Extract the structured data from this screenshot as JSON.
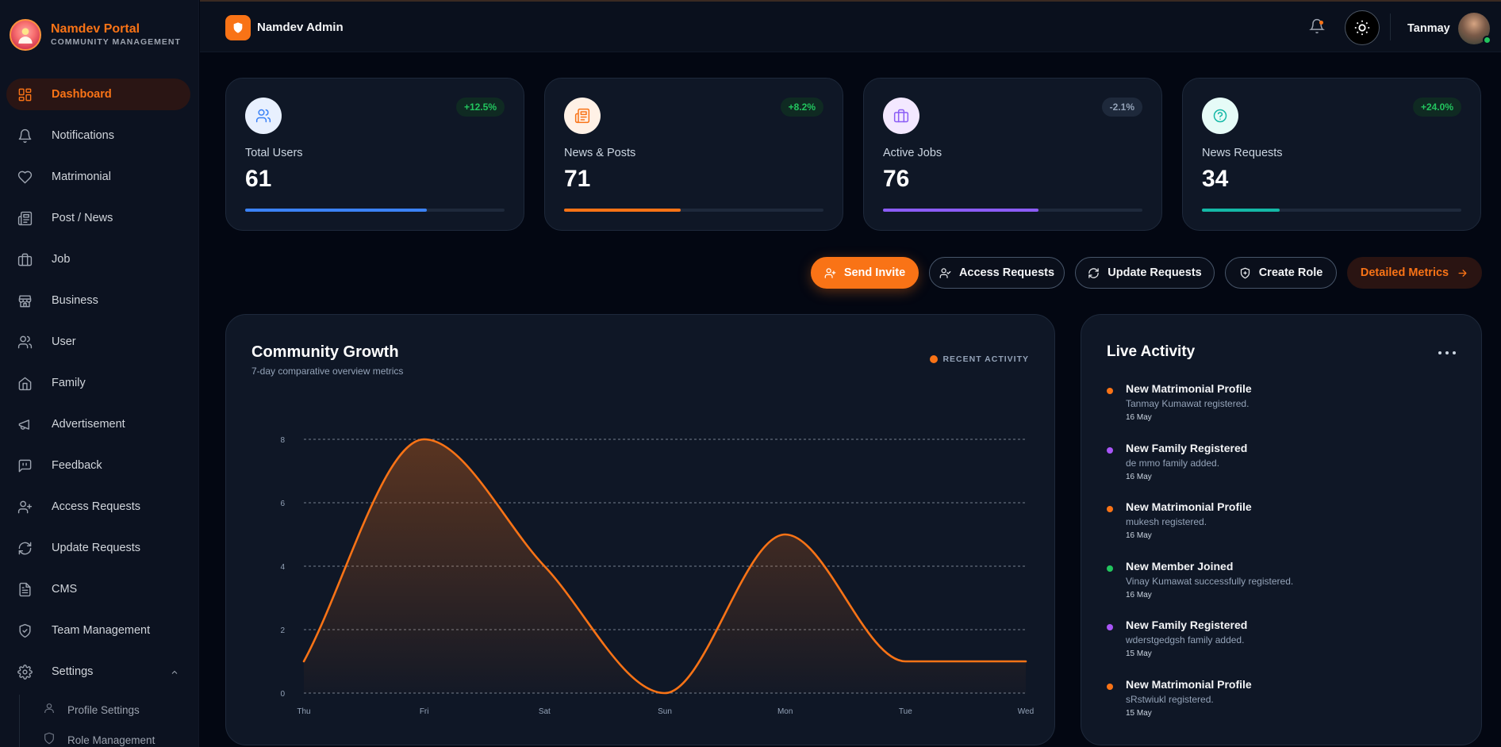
{
  "brand": {
    "title": "Namdev Portal",
    "subtitle": "COMMUNITY MANAGEMENT"
  },
  "sidebar": {
    "items": [
      {
        "label": "Dashboard",
        "icon": "dashboard-icon",
        "active": true
      },
      {
        "label": "Notifications",
        "icon": "bell-icon"
      },
      {
        "label": "Matrimonial",
        "icon": "heart-icon"
      },
      {
        "label": "Post / News",
        "icon": "newspaper-icon"
      },
      {
        "label": "Job",
        "icon": "briefcase-icon"
      },
      {
        "label": "Business",
        "icon": "store-icon"
      },
      {
        "label": "User",
        "icon": "users-icon"
      },
      {
        "label": "Family",
        "icon": "home-icon"
      },
      {
        "label": "Advertisement",
        "icon": "megaphone-icon"
      },
      {
        "label": "Feedback",
        "icon": "message-quote-icon"
      },
      {
        "label": "Access Requests",
        "icon": "user-plus-icon"
      },
      {
        "label": "Update Requests",
        "icon": "refresh-icon"
      },
      {
        "label": "CMS",
        "icon": "file-text-icon"
      },
      {
        "label": "Team Management",
        "icon": "shield-check-icon"
      },
      {
        "label": "Settings",
        "icon": "gear-icon"
      }
    ],
    "sub_items": [
      {
        "label": "Profile Settings",
        "icon": "user-icon"
      },
      {
        "label": "Role Management",
        "icon": "shield-icon"
      }
    ]
  },
  "header": {
    "title": "Namdev Admin",
    "user_name": "Tanmay"
  },
  "stats": [
    {
      "label": "Total Users",
      "value": "61",
      "trend": "+12.5%",
      "progress": 0.7,
      "color": "#3b82f6",
      "trend_color": "#22c55e",
      "icon": "users-icon"
    },
    {
      "label": "News & Posts",
      "value": "71",
      "trend": "+8.2%",
      "progress": 0.45,
      "color": "#f97316",
      "trend_color": "#22c55e",
      "icon": "newspaper-icon"
    },
    {
      "label": "Active Jobs",
      "value": "76",
      "trend": "-2.1%",
      "progress": 0.6,
      "color": "#8b5cf6",
      "trend_color": "#94a3b8",
      "icon": "briefcase-icon"
    },
    {
      "label": "News Requests",
      "value": "34",
      "trend": "+24.0%",
      "progress": 0.3,
      "color": "#14b8a6",
      "trend_color": "#22c55e",
      "icon": "help-circle-icon"
    }
  ],
  "actions": {
    "send_invite": "Send Invite",
    "access_requests": "Access Requests",
    "update_requests": "Update Requests",
    "create_role": "Create Role",
    "detailed_metrics": "Detailed Metrics"
  },
  "growth": {
    "title": "Community Growth",
    "subtitle": "7-day comparative overview metrics",
    "legend": "RECENT ACTIVITY"
  },
  "chart_data": {
    "type": "area",
    "categories": [
      "Thu",
      "Fri",
      "Sat",
      "Sun",
      "Mon",
      "Tue",
      "Wed"
    ],
    "values": [
      1,
      8,
      4,
      0,
      5,
      1,
      1
    ],
    "yticks": [
      0,
      2,
      4,
      6,
      8
    ],
    "ylim": [
      0,
      8
    ],
    "color": "#f97316",
    "grid": true
  },
  "activity": {
    "title": "Live Activity",
    "items": [
      {
        "title": "New Matrimonial Profile",
        "desc": "Tanmay Kumawat registered.",
        "time": "16 May",
        "color": "#f97316"
      },
      {
        "title": "New Family Registered",
        "desc": "de mmo family added.",
        "time": "16 May",
        "color": "#a855f7"
      },
      {
        "title": "New Matrimonial Profile",
        "desc": "mukesh registered.",
        "time": "16 May",
        "color": "#f97316"
      },
      {
        "title": "New Member Joined",
        "desc": "Vinay Kumawat successfully registered.",
        "time": "16 May",
        "color": "#22c55e"
      },
      {
        "title": "New Family Registered",
        "desc": "wderstgedgsh family added.",
        "time": "15 May",
        "color": "#a855f7"
      },
      {
        "title": "New Matrimonial Profile",
        "desc": "sRstwiukl registered.",
        "time": "15 May",
        "color": "#f97316"
      }
    ]
  }
}
